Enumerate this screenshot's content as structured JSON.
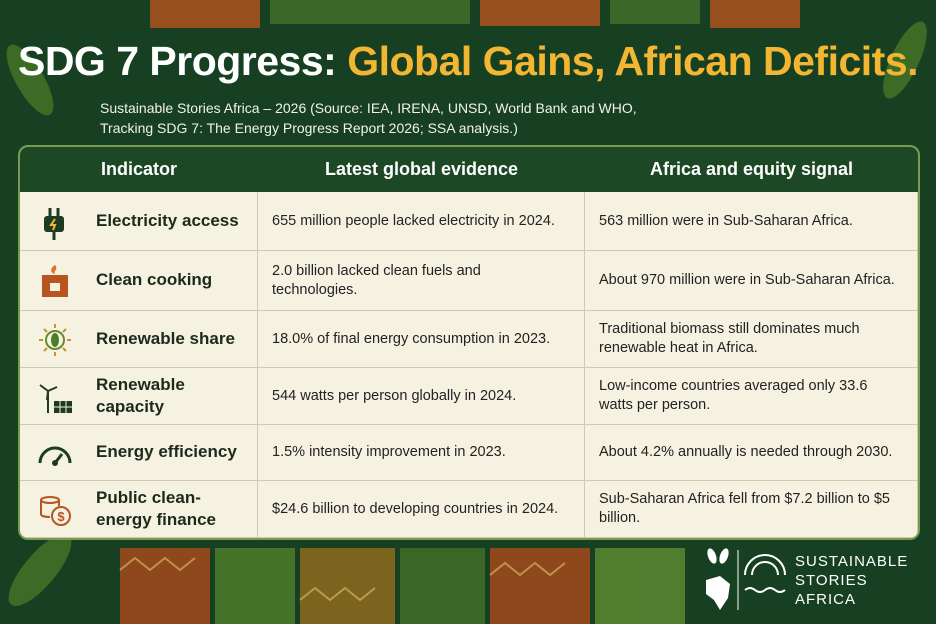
{
  "header": {
    "title_part1": "SDG 7 Progress:",
    "title_part2": "Global Gains, African Deficits.",
    "subtitle": [
      "Sustainable Stories Africa – 2026 (Source: IEA, IRENA, UNSD, World Bank and WHO,",
      "Tracking SDG 7: The Energy Progress Report 2026; SSA analysis.)"
    ]
  },
  "table": {
    "columns": [
      "Indicator",
      "Latest global evidence",
      "Africa and equity signal"
    ],
    "rows": [
      [
        "Electricity access",
        "655 million people lacked electricity in 2024.",
        "563 million were in Sub-Saharan Africa."
      ],
      [
        "Clean cooking",
        "2.0 billion lacked clean fuels and technologies.",
        "About 970 million were in Sub-Saharan Africa."
      ],
      [
        "Renewable share",
        "18.0% of final energy consumption in 2023.",
        "Traditional biomass still dominates much renewable heat in Africa."
      ],
      [
        "Renewable capacity",
        "544 watts per person globally in 2024.",
        "Low-income countries averaged only 33.6 watts per person."
      ],
      [
        "Energy efficiency",
        "1.5% intensity improvement in 2023.",
        "About 4.2% annually is needed through 2030."
      ],
      [
        "Public clean-energy finance",
        "$24.6 billion to developing countries in 2024.",
        "Sub-Saharan Africa fell from $7.2 billion to $5 billion."
      ]
    ]
  },
  "logo": {
    "lines": [
      "SUSTAINABLE",
      "STORIES",
      "AFRICA"
    ]
  }
}
